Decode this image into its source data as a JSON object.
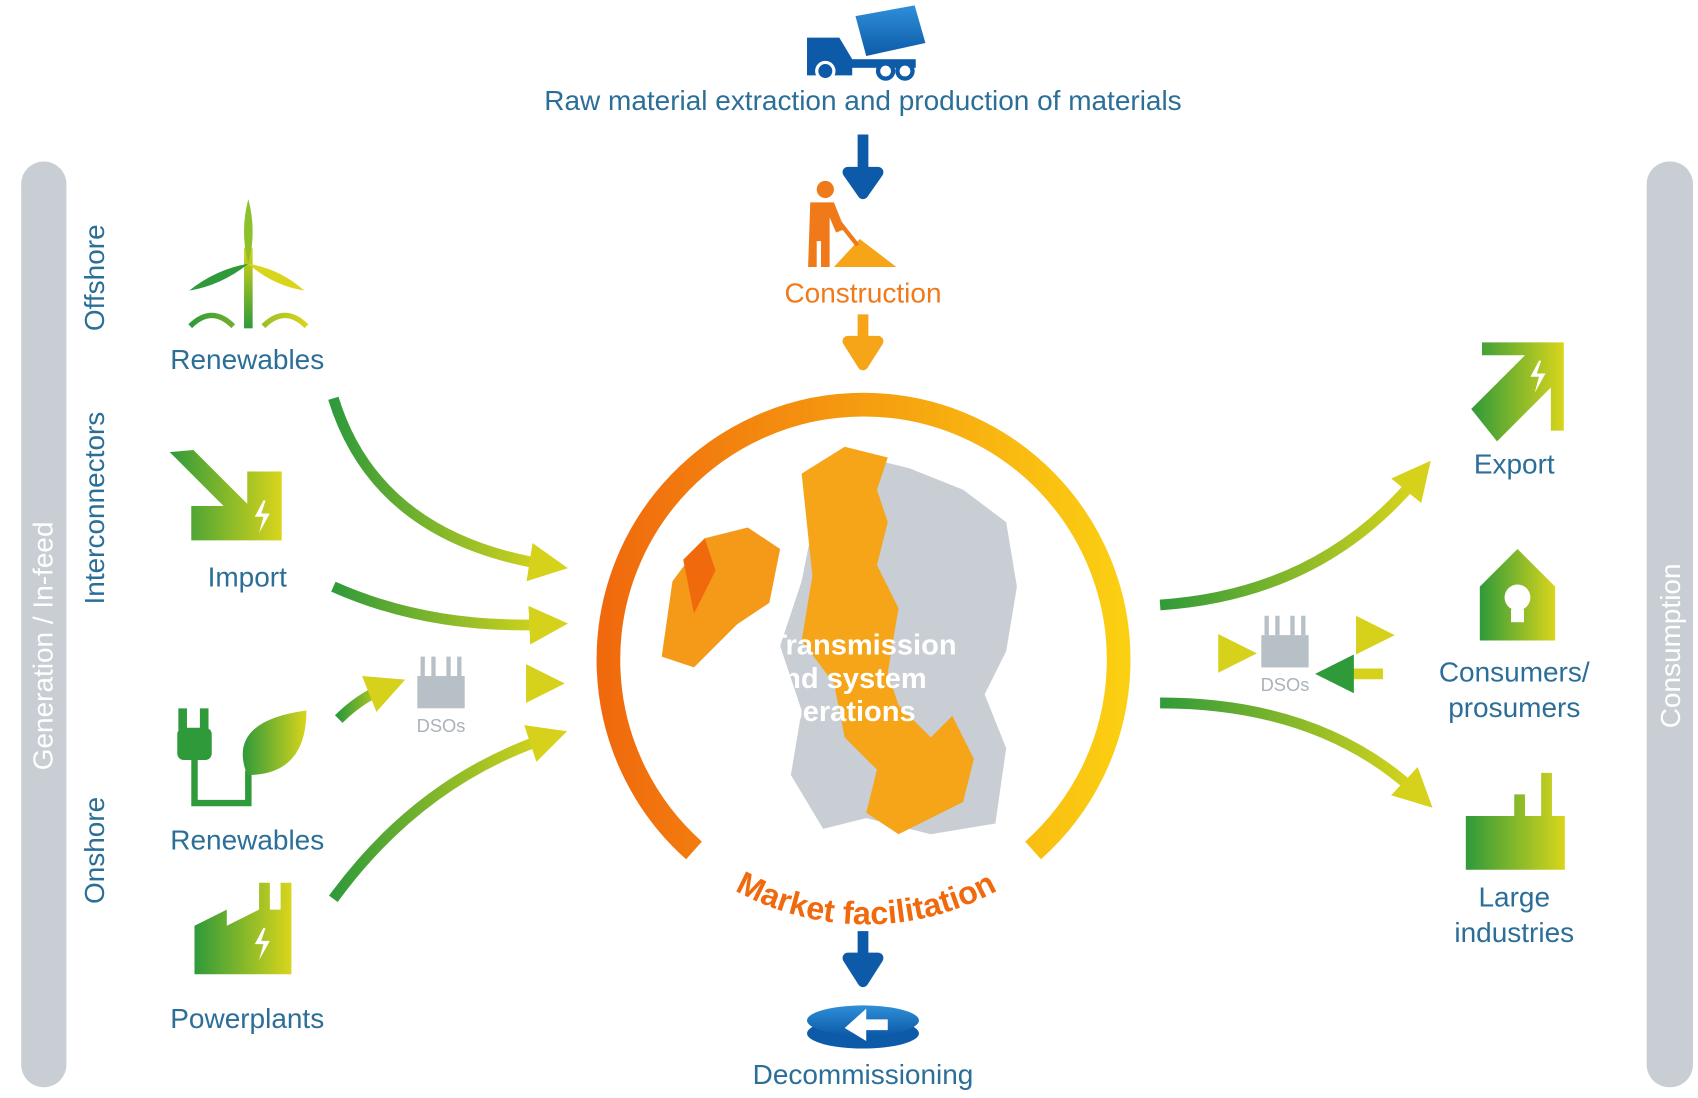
{
  "top": {
    "label": "Raw material extraction and production of materials"
  },
  "stages": {
    "construction": "Construction",
    "decommissioning": "Decommissioning"
  },
  "center": {
    "title_lines": [
      "Transmission",
      "and system",
      "operations"
    ],
    "ring_label": "Market facilitation"
  },
  "left": {
    "side_label": "Generation / In-feed",
    "groups": [
      "Offshore",
      "Interconnectors",
      "Onshore"
    ],
    "items": [
      "Renewables",
      "Import",
      "Renewables",
      "Powerplants"
    ],
    "dso": "DSOs"
  },
  "right": {
    "side_label": "Consumption",
    "items": [
      {
        "lines": [
          "Export"
        ]
      },
      {
        "lines": [
          "Consumers/",
          "prosumers"
        ]
      },
      {
        "lines": [
          "Large",
          "industries"
        ]
      }
    ],
    "dso": "DSOs"
  }
}
